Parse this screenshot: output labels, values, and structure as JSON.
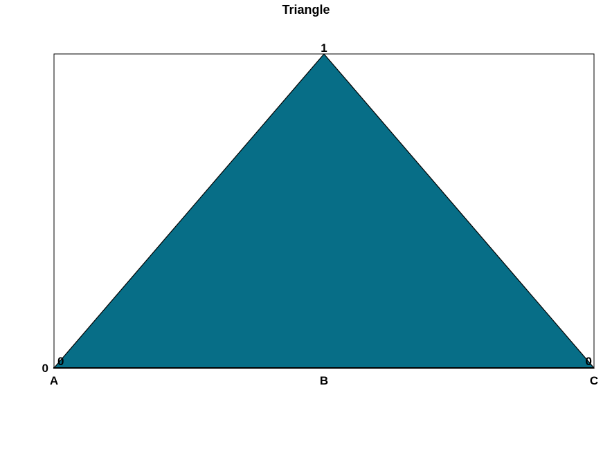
{
  "chart_data": {
    "type": "area",
    "title": "Triangle",
    "xlabel": "",
    "ylabel": "",
    "categories": [
      "A",
      "B",
      "C"
    ],
    "series": [
      {
        "values": [
          0,
          1,
          0
        ]
      }
    ],
    "data_labels": [
      "0",
      "1",
      "0"
    ],
    "ylim": [
      0,
      1
    ],
    "y_ticks": [
      0
    ],
    "y_tick_labels": [
      "0"
    ],
    "grid": false,
    "legend": "none",
    "colors": {
      "fill": "#076e87",
      "stroke": "#000000",
      "frame": "#000000",
      "text": "#000000",
      "background": "#ffffff"
    }
  }
}
